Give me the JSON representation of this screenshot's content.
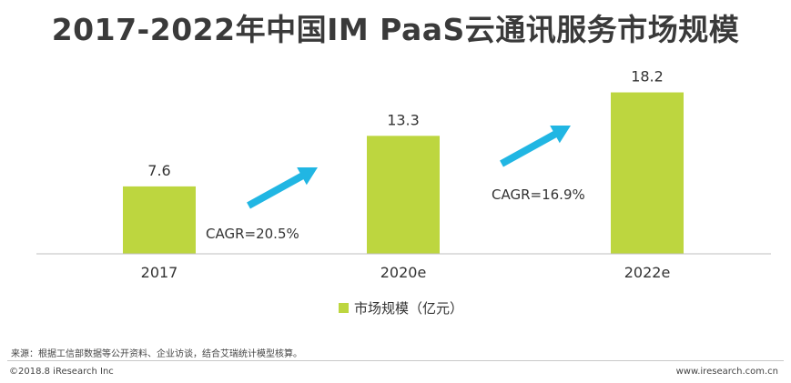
{
  "title": "2017-2022年中国IM PaaS云通讯服务市场规模",
  "chart_data": {
    "type": "bar",
    "categories": [
      "2017",
      "2020e",
      "2022e"
    ],
    "series": [
      {
        "name": "市场规模（亿元）",
        "values": [
          7.6,
          13.3,
          18.2
        ]
      }
    ],
    "value_labels": [
      "7.6",
      "13.3",
      "18.2"
    ],
    "ylim": [
      0,
      20
    ],
    "grid": false,
    "legend_position": "bottom",
    "bar_color": "#bdd63f",
    "arrow_color": "#21b6e3",
    "annotations": [
      {
        "text": "CAGR=20.5%",
        "from": "2017",
        "to": "2020e"
      },
      {
        "text": "CAGR=16.9%",
        "from": "2020e",
        "to": "2022e"
      }
    ]
  },
  "footer": {
    "source": "来源：根据工信部数据等公开资料、企业访谈，结合艾瑞统计模型核算。",
    "copyright": "©2018.8 iResearch Inc",
    "website": "www.iresearch.com.cn"
  }
}
